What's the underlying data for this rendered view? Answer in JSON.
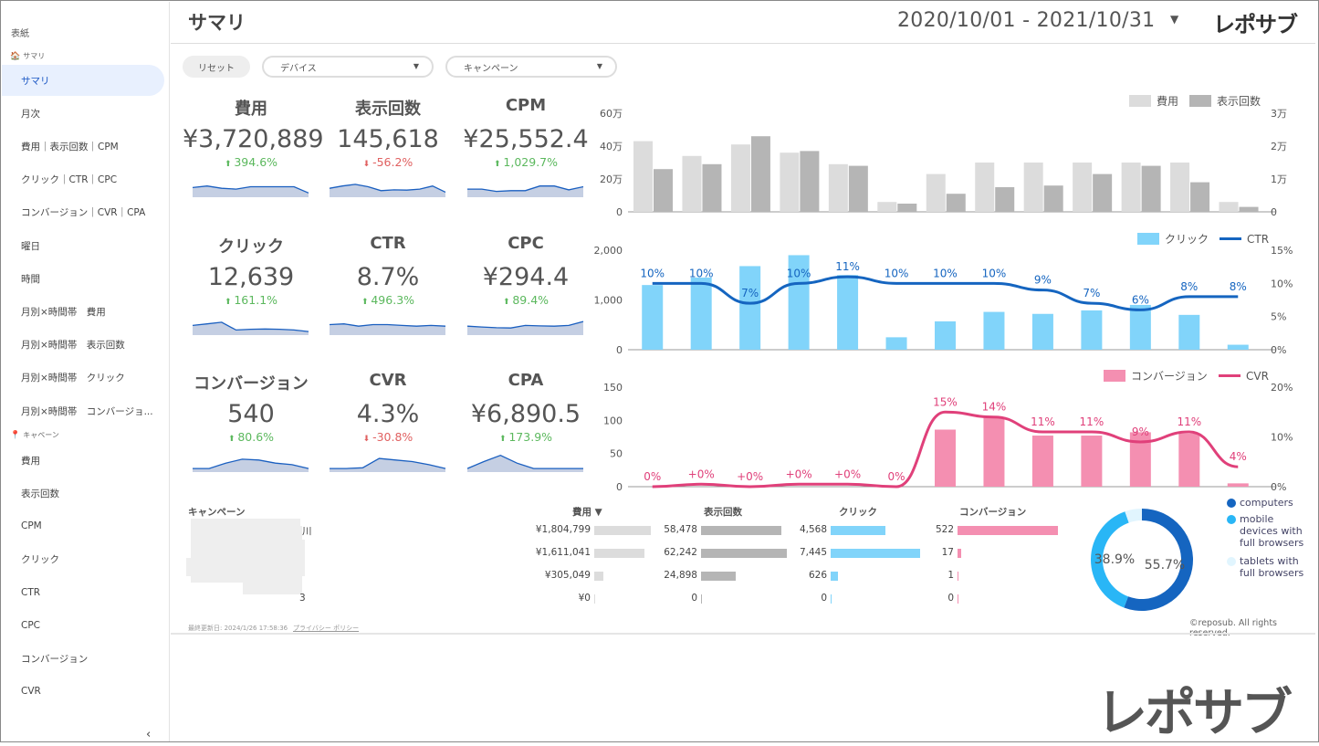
{
  "sidebar": {
    "cover": "表紙",
    "section_summary": "サマリ",
    "section_campaign": "キャペーン",
    "items": [
      "サマリ",
      "月次",
      "費用｜表示回数｜CPM",
      "クリック｜CTR｜CPC",
      "コンバージョン｜CVR｜CPA",
      "曜日",
      "時間",
      "月別×時間帯　費用",
      "月別×時間帯　表示回数",
      "月別×時間帯　クリック",
      "月別×時間帯　コンバージョ..."
    ],
    "campaign_items": [
      "費用",
      "表示回数",
      "CPM",
      "クリック",
      "CTR",
      "CPC",
      "コンバージョン",
      "CVR"
    ],
    "collapse": "‹"
  },
  "header": {
    "title": "サマリ",
    "date_range": "2020/10/01 - 2021/10/31",
    "caret": "▼",
    "brand": "レポサブ"
  },
  "filters": {
    "reset": "リセット",
    "device": "デバイス",
    "campaign": "キャンペーン",
    "caret": "▼"
  },
  "kpis": [
    {
      "label": "費用",
      "value": "¥3,720,889",
      "change": "394.6%",
      "dir": "up",
      "spark": [
        0.55,
        0.45,
        0.6,
        0.65,
        0.5,
        0.5,
        0.5,
        0.5,
        0.9
      ]
    },
    {
      "label": "表示回数",
      "value": "145,618",
      "change": "-56.2%",
      "dir": "down",
      "spark": [
        0.6,
        0.45,
        0.35,
        0.5,
        0.75,
        0.7,
        0.72,
        0.65,
        0.45,
        0.85
      ]
    },
    {
      "label": "CPM",
      "value": "¥25,552.4",
      "change": "1,029.7%",
      "dir": "up",
      "spark": [
        0.65,
        0.65,
        0.8,
        0.75,
        0.75,
        0.45,
        0.45,
        0.7,
        0.5
      ]
    },
    {
      "label": "クリック",
      "value": "12,639",
      "change": "161.1%",
      "dir": "up",
      "spark": [
        0.55,
        0.45,
        0.35,
        0.85,
        0.8,
        0.78,
        0.8,
        0.85,
        0.95
      ]
    },
    {
      "label": "CTR",
      "value": "8.7%",
      "change": "496.3%",
      "dir": "up",
      "spark": [
        0.5,
        0.45,
        0.6,
        0.5,
        0.5,
        0.55,
        0.6,
        0.55,
        0.6
      ]
    },
    {
      "label": "CPC",
      "value": "¥294.4",
      "change": "89.4%",
      "dir": "up",
      "spark": [
        0.6,
        0.65,
        0.7,
        0.72,
        0.55,
        0.58,
        0.6,
        0.55,
        0.3
      ]
    },
    {
      "label": "コンバージョン",
      "value": "540",
      "change": "80.6%",
      "dir": "up",
      "spark": [
        0.95,
        0.95,
        0.6,
        0.35,
        0.4,
        0.6,
        0.7,
        0.95
      ]
    },
    {
      "label": "CVR",
      "value": "4.3%",
      "change": "-30.8%",
      "dir": "down",
      "spark": [
        0.95,
        0.95,
        0.9,
        0.3,
        0.4,
        0.5,
        0.7,
        0.95
      ]
    },
    {
      "label": "CPA",
      "value": "¥6,890.5",
      "change": "173.9%",
      "dir": "up",
      "spark": [
        0.95,
        0.5,
        0.1,
        0.6,
        0.95,
        0.95,
        0.95,
        0.95
      ]
    }
  ],
  "chart_data": [
    {
      "type": "bar",
      "series": [
        {
          "name": "費用",
          "color": "#dcdcdc",
          "axis": "left",
          "values": [
            430000,
            340000,
            410000,
            360000,
            290000,
            60000,
            230000,
            300000,
            300000,
            300000,
            300000,
            300000,
            60000
          ]
        },
        {
          "name": "表示回数",
          "color": "#b5b5b5",
          "axis": "right",
          "values": [
            13000,
            14500,
            23000,
            18500,
            14000,
            2500,
            5500,
            7500,
            8000,
            11500,
            14000,
            9000,
            1500
          ]
        }
      ],
      "yticks_left": [
        "0",
        "20万",
        "40万",
        "60万"
      ],
      "yticks_right": [
        "0",
        "1万",
        "2万",
        "3万"
      ],
      "ylim_left": [
        0,
        600000
      ],
      "ylim_right": [
        0,
        30000
      ]
    },
    {
      "type": "bar",
      "series": [
        {
          "name": "クリック",
          "color": "#81d4fa",
          "axis": "left",
          "values": [
            1300,
            1450,
            1680,
            1900,
            1500,
            250,
            570,
            760,
            720,
            790,
            900,
            700,
            100
          ]
        },
        {
          "name": "CTR",
          "color": "#1565c0",
          "axis": "right",
          "type": "line",
          "values": [
            10,
            10,
            7,
            10,
            11,
            10,
            10,
            10,
            9,
            7,
            6,
            8,
            8
          ],
          "labels": [
            "10%",
            "10%",
            "7%",
            "10%",
            "11%",
            "10%",
            "10%",
            "10%",
            "9%",
            "7%",
            "6%",
            "8%",
            "8%"
          ]
        }
      ],
      "yticks_left": [
        "0",
        "1,000",
        "2,000"
      ],
      "yticks_right": [
        "0%",
        "5%",
        "10%",
        "15%"
      ],
      "ylim_left": [
        0,
        2000
      ],
      "ylim_right": [
        0,
        15
      ]
    },
    {
      "type": "bar",
      "series": [
        {
          "name": "コンバージョン",
          "color": "#f48fb1",
          "axis": "left",
          "values": [
            0,
            0,
            0,
            0,
            0,
            0,
            86,
            105,
            77,
            77,
            82,
            80,
            5
          ]
        },
        {
          "name": "CVR",
          "color": "#e0407a",
          "axis": "right",
          "type": "line",
          "values": [
            0,
            0.5,
            0,
            0.5,
            0.5,
            0,
            15,
            14,
            11,
            11,
            9,
            11,
            4
          ],
          "labels": [
            "0%",
            "+0%",
            "+0%",
            "+0%",
            "+0%",
            "0%",
            "15%",
            "14%",
            "11%",
            "11%",
            "9%",
            "11%",
            "4%"
          ]
        }
      ],
      "yticks_left": [
        "0",
        "50",
        "100",
        "150"
      ],
      "yticks_right": [
        "0%",
        "10%",
        "20%"
      ],
      "ylim_left": [
        0,
        150
      ],
      "ylim_right": [
        0,
        20
      ]
    },
    {
      "type": "pie",
      "series": [
        {
          "name": "computers",
          "color": "#1565c0",
          "value": 55.7
        },
        {
          "name": "mobile devices with full browsers",
          "color": "#29b6f6",
          "value": 38.9
        },
        {
          "name": "tablets with full browsers",
          "color": "#e1f5fe",
          "value": 5.4
        }
      ],
      "labels": [
        "55.7%",
        "38.9%"
      ]
    }
  ],
  "table": {
    "headers": [
      "キャンペーン",
      "費用 ▼",
      "表示回数",
      "クリック",
      "コンバージョン"
    ],
    "rows": [
      {
        "name": "川",
        "cost": "¥1,804,799",
        "cost_v": 1804799,
        "imp": "58,478",
        "imp_v": 58478,
        "clk": "4,568",
        "clk_v": 4568,
        "cv": "522",
        "cv_v": 522
      },
      {
        "name": "",
        "cost": "¥1,611,041",
        "cost_v": 1611041,
        "imp": "62,242",
        "imp_v": 62242,
        "clk": "7,445",
        "clk_v": 7445,
        "cv": "17",
        "cv_v": 17
      },
      {
        "name": "",
        "cost": "¥305,049",
        "cost_v": 305049,
        "imp": "24,898",
        "imp_v": 24898,
        "clk": "626",
        "clk_v": 626,
        "cv": "1",
        "cv_v": 1
      },
      {
        "name": "3",
        "cost": "¥0",
        "cost_v": 0,
        "imp": "0",
        "imp_v": 0,
        "clk": "0",
        "clk_v": 0,
        "cv": "0",
        "cv_v": 0
      }
    ],
    "max": {
      "cost": 1804799,
      "imp": 62242,
      "clk": 7445,
      "cv": 522
    }
  },
  "footer": {
    "updated": "最終更新日: 2024/1/26 17:58:36",
    "privacy": "プライバシー ポリシー",
    "copyright": "©reposub. All rights reserved.",
    "brand_big": "レポサブ"
  }
}
